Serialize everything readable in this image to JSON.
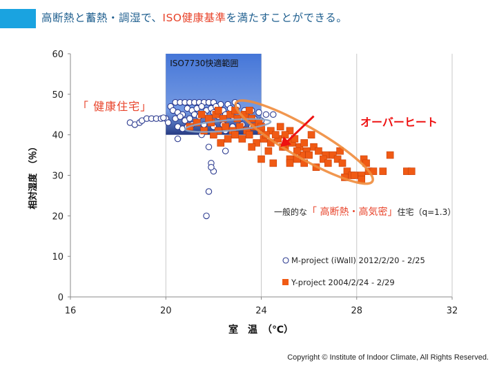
{
  "title": {
    "before": "高断熱と蓄熱・調湿で、",
    "highlight": "ISO健康基準",
    "after": "を満たすことができる。"
  },
  "colors": {
    "accent_bar": "#1aa3e0",
    "title_text": "#1f5f8f",
    "highlight_red": "#e8432a",
    "m_point_edge": "#2b3a8f",
    "y_point_fill": "#f05a14",
    "ellipse_orange": "#f08c3c",
    "ellipse_blue": "#8aa4c8",
    "comfort_zone": "#3b6fd6"
  },
  "chart_data": {
    "type": "scatter",
    "xlabel": "室　温　（℃）",
    "ylabel": "相対湿度　（％）",
    "xlim": [
      16,
      32
    ],
    "ylim": [
      0,
      60
    ],
    "xticks": [
      16,
      20,
      24,
      28,
      32
    ],
    "yticks": [
      0,
      10,
      20,
      30,
      40,
      50,
      60
    ],
    "grid": "vertical",
    "comfort_zone": {
      "label": "ISO7730快適範囲",
      "x": [
        20,
        24
      ],
      "y": [
        40,
        60
      ]
    },
    "annotations": {
      "healthy_house": "「 健康住宅」",
      "overheat": "オーバーヒート",
      "general_prefix": "一般的な",
      "general_highlight": "「 高断熱・高気密」",
      "general_suffix": "住宅（q=1.3）"
    },
    "series": [
      {
        "name": "M-project (iWall) 2012/2/20 - 2/25",
        "marker": "circle",
        "points": [
          [
            18.5,
            43
          ],
          [
            18.7,
            42.5
          ],
          [
            18.9,
            43
          ],
          [
            19.0,
            43.5
          ],
          [
            19.2,
            44
          ],
          [
            19.4,
            44
          ],
          [
            19.6,
            44
          ],
          [
            19.8,
            44
          ],
          [
            20.0,
            44
          ],
          [
            20.1,
            43
          ],
          [
            19.9,
            44.2
          ],
          [
            20.2,
            47
          ],
          [
            20.4,
            48
          ],
          [
            20.6,
            48
          ],
          [
            20.8,
            48
          ],
          [
            21.0,
            48
          ],
          [
            21.2,
            48
          ],
          [
            21.4,
            48
          ],
          [
            21.6,
            48
          ],
          [
            21.8,
            48
          ],
          [
            22.0,
            48
          ],
          [
            22.3,
            47.5
          ],
          [
            22.6,
            47.5
          ],
          [
            22.9,
            48
          ],
          [
            20.3,
            46
          ],
          [
            20.5,
            45.5
          ],
          [
            20.7,
            45
          ],
          [
            20.9,
            46.5
          ],
          [
            21.1,
            46
          ],
          [
            21.3,
            46.5
          ],
          [
            21.5,
            47
          ],
          [
            21.7,
            46
          ],
          [
            21.9,
            46.5
          ],
          [
            22.1,
            47
          ],
          [
            22.4,
            46
          ],
          [
            22.7,
            46.5
          ],
          [
            23.0,
            47
          ],
          [
            23.3,
            46
          ],
          [
            23.6,
            46
          ],
          [
            23.9,
            45.5
          ],
          [
            24.2,
            45
          ],
          [
            24.5,
            45
          ],
          [
            20.4,
            44
          ],
          [
            20.6,
            44.5
          ],
          [
            20.8,
            43.5
          ],
          [
            21.0,
            44
          ],
          [
            21.2,
            45
          ],
          [
            21.4,
            44.5
          ],
          [
            21.6,
            45
          ],
          [
            21.8,
            44
          ],
          [
            22.0,
            45.5
          ],
          [
            22.2,
            44.5
          ],
          [
            22.5,
            45
          ],
          [
            22.8,
            44.5
          ],
          [
            23.1,
            44
          ],
          [
            23.4,
            44.5
          ],
          [
            23.7,
            44
          ],
          [
            24.0,
            43.5
          ],
          [
            20.5,
            42
          ],
          [
            20.7,
            41.5
          ],
          [
            20.9,
            42
          ],
          [
            21.1,
            42.5
          ],
          [
            21.3,
            43
          ],
          [
            21.6,
            42.5
          ],
          [
            22.0,
            42
          ],
          [
            22.4,
            42.5
          ],
          [
            22.8,
            42
          ],
          [
            23.2,
            42.5
          ],
          [
            23.6,
            42
          ],
          [
            24.0,
            41.5
          ],
          [
            20.5,
            39
          ],
          [
            21.5,
            40
          ],
          [
            22.5,
            41
          ],
          [
            21.8,
            37
          ],
          [
            21.9,
            33
          ],
          [
            22.0,
            31
          ],
          [
            21.9,
            32
          ],
          [
            21.8,
            26
          ],
          [
            21.7,
            20
          ],
          [
            22.5,
            36
          ]
        ]
      },
      {
        "name": "Y-project 2004/2/24 - 2/29",
        "marker": "square",
        "points": [
          [
            21.0,
            42
          ],
          [
            21.3,
            43
          ],
          [
            21.6,
            41
          ],
          [
            21.9,
            43
          ],
          [
            22.2,
            41
          ],
          [
            22.5,
            42
          ],
          [
            22.8,
            41
          ],
          [
            23.1,
            42
          ],
          [
            23.4,
            41
          ],
          [
            23.7,
            42
          ],
          [
            24.0,
            41
          ],
          [
            24.4,
            41
          ],
          [
            24.8,
            42
          ],
          [
            25.2,
            41
          ],
          [
            21.5,
            45
          ],
          [
            21.8,
            44
          ],
          [
            22.1,
            45
          ],
          [
            22.4,
            44
          ],
          [
            22.7,
            45
          ],
          [
            23.0,
            44
          ],
          [
            23.3,
            45
          ],
          [
            23.6,
            44
          ],
          [
            23.9,
            43
          ],
          [
            22.0,
            40
          ],
          [
            22.3,
            38
          ],
          [
            22.6,
            39
          ],
          [
            22.9,
            40
          ],
          [
            23.2,
            39
          ],
          [
            23.5,
            40
          ],
          [
            23.8,
            38
          ],
          [
            24.1,
            39
          ],
          [
            24.4,
            38
          ],
          [
            24.7,
            39
          ],
          [
            25.0,
            37
          ],
          [
            25.3,
            38
          ],
          [
            25.6,
            37
          ],
          [
            25.9,
            36
          ],
          [
            22.2,
            46
          ],
          [
            22.9,
            46
          ],
          [
            23.5,
            46
          ],
          [
            24.0,
            42
          ],
          [
            24.2,
            40
          ],
          [
            24.6,
            40
          ],
          [
            25.0,
            40
          ],
          [
            25.4,
            39
          ],
          [
            25.8,
            38
          ],
          [
            26.2,
            37
          ],
          [
            26.4,
            36
          ],
          [
            26.7,
            35
          ],
          [
            27.0,
            35
          ],
          [
            27.3,
            36
          ],
          [
            26.0,
            35
          ],
          [
            26.1,
            40
          ],
          [
            26.6,
            34
          ],
          [
            25.8,
            33
          ],
          [
            25.2,
            34
          ],
          [
            25.5,
            34
          ],
          [
            25.7,
            35
          ],
          [
            27.2,
            34
          ],
          [
            27.4,
            33
          ],
          [
            27.6,
            31
          ],
          [
            27.8,
            30
          ],
          [
            28.2,
            30
          ],
          [
            28.5,
            31
          ],
          [
            28.7,
            31
          ],
          [
            29.1,
            31
          ],
          [
            28.3,
            34
          ],
          [
            28.4,
            33
          ],
          [
            29.4,
            35
          ],
          [
            30.1,
            31
          ],
          [
            30.3,
            31
          ],
          [
            28.2,
            29
          ],
          [
            27.9,
            30
          ],
          [
            27.5,
            29.5
          ],
          [
            24.0,
            34
          ],
          [
            24.5,
            33
          ],
          [
            25.2,
            33
          ],
          [
            25.5,
            36
          ],
          [
            26.3,
            32
          ],
          [
            26.8,
            33
          ],
          [
            23.6,
            37
          ],
          [
            24.3,
            36
          ],
          [
            24.9,
            37
          ]
        ]
      }
    ],
    "ellipses": [
      {
        "name": "healthy-house",
        "center": [
          22.6,
          42.3
        ],
        "rx_data": 4.0,
        "ry_data": 5.2,
        "rotate_deg": -5
      },
      {
        "name": "general-house",
        "center": [
          25.8,
          38.2
        ],
        "rx_data": 6.6,
        "ry_data": 12.5,
        "rotate_deg": 30
      }
    ],
    "overheat_arrow": {
      "from": [
        26.2,
        44.6
      ],
      "to": [
        24.8,
        37.0
      ]
    }
  },
  "copyright": "Copyright © Institute of Indoor Climate, All Rights Reserved."
}
